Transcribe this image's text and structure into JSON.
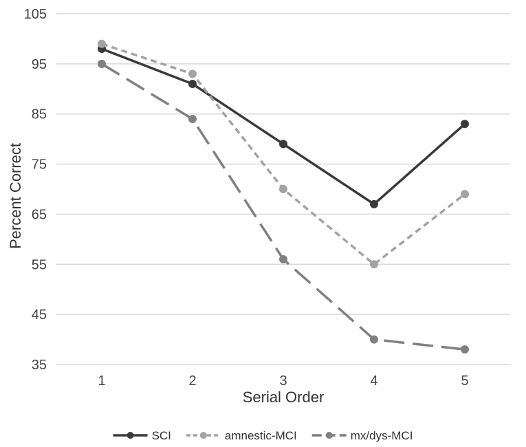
{
  "chart_data": {
    "type": "line",
    "x": [
      1,
      2,
      3,
      4,
      5
    ],
    "xlabel": "Serial Order",
    "ylabel": "Percent Correct",
    "ylim": [
      35,
      105
    ],
    "yticks": [
      35,
      45,
      55,
      65,
      75,
      85,
      95,
      105
    ],
    "grid": true,
    "legend": "bottom",
    "series": [
      {
        "name": "SCI",
        "values": [
          98,
          91,
          79,
          67,
          83
        ],
        "color": "#3a3a3a",
        "dash": "solid"
      },
      {
        "name": "amnestic-MCI",
        "values": [
          99,
          93,
          70,
          55,
          69
        ],
        "color": "#a3a3a3",
        "dash": "short"
      },
      {
        "name": "mx/dys-MCI",
        "values": [
          95,
          84,
          56,
          40,
          38
        ],
        "color": "#808080",
        "dash": "long"
      }
    ]
  }
}
